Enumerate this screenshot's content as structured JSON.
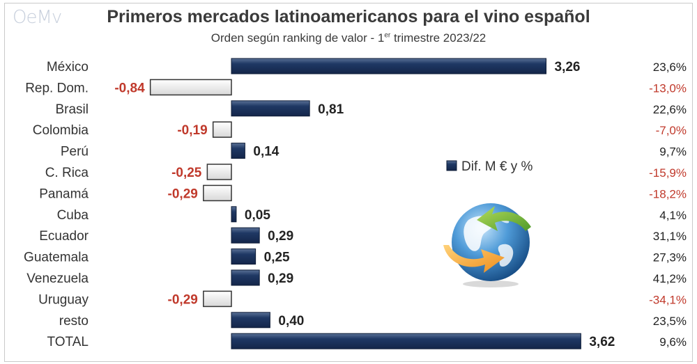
{
  "logo_text": "OeMv",
  "chart_data": {
    "type": "bar",
    "title": "Primeros mercados latinoamericanos para el vino español",
    "subtitle_pre": "Orden según ranking de valor - 1",
    "subtitle_sup": "er",
    "subtitle_post": " trimestre 2023/22",
    "legend": "Dif. M € y %",
    "categories": [
      "México",
      "Rep. Dom.",
      "Brasil",
      "Colombia",
      "Perú",
      "C. Rica",
      "Panamá",
      "Cuba",
      "Ecuador",
      "Guatemala",
      "Venezuela",
      "Uruguay",
      "resto",
      "TOTAL"
    ],
    "values": [
      3.26,
      -0.84,
      0.81,
      -0.19,
      0.14,
      -0.25,
      -0.29,
      0.05,
      0.29,
      0.25,
      0.29,
      -0.29,
      0.4,
      3.62
    ],
    "value_labels": [
      "3,26",
      "-0,84",
      "0,81",
      "-0,19",
      "0,14",
      "-0,25",
      "-0,29",
      "0,05",
      "0,29",
      "0,25",
      "0,29",
      "-0,29",
      "0,40",
      "3,62"
    ],
    "pct_labels": [
      "23,6%",
      "-13,0%",
      "22,6%",
      "-7,0%",
      "9,7%",
      "-15,9%",
      "-18,2%",
      "4,1%",
      "31,1%",
      "27,3%",
      "41,2%",
      "-34,1%",
      "23,5%",
      "9,6%"
    ],
    "colors": {
      "positive": "#1f3864",
      "negative_fill": "#ffffff",
      "negative_text": "#c0392b",
      "text": "#222222"
    }
  }
}
